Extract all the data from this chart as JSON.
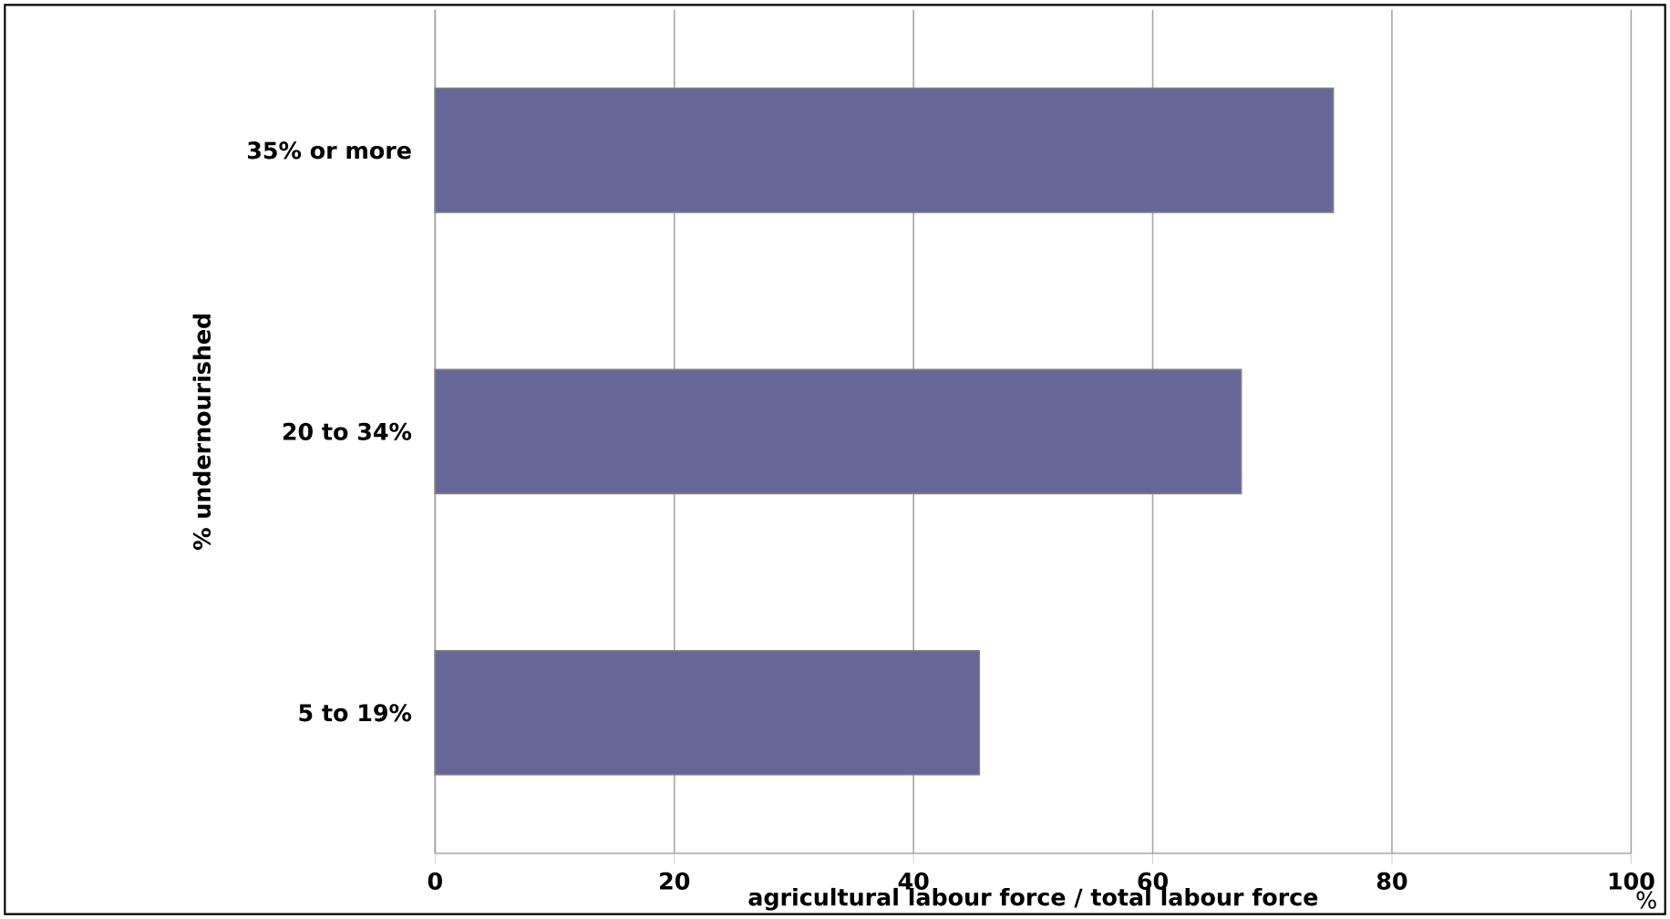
{
  "chart_data": {
    "type": "bar",
    "orientation": "horizontal",
    "categories": [
      "35% or more",
      "20 to 34%",
      "5 to 19%"
    ],
    "values": [
      75.1,
      67.4,
      45.5
    ],
    "color": "#666699",
    "xlabel": "agricultural labour force / total labour force",
    "ylabel": "% undernourished",
    "xlim": [
      0,
      100
    ],
    "xticks": [
      0,
      20,
      40,
      60,
      80,
      100
    ],
    "grid": "x",
    "legend": false,
    "annotations": [
      "%"
    ]
  }
}
